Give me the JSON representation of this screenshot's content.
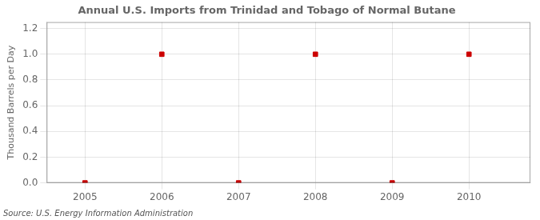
{
  "chart_data": {
    "type": "scatter",
    "title": "Annual U.S. Imports from Trinidad and Tobago of Normal Butane",
    "ylabel": "Thousand Barrels per Day",
    "source": "Source: U.S. Energy Information Administration",
    "x": [
      2005,
      2006,
      2007,
      2008,
      2009,
      2010
    ],
    "values": [
      0.0,
      1.0,
      0.0,
      1.0,
      0.0,
      1.0
    ],
    "color": "#cc0000",
    "marker": "square",
    "xlim": [
      2004.5,
      2010.8
    ],
    "xticks": [
      2005,
      2006,
      2007,
      2008,
      2009,
      2010
    ],
    "ylim": [
      0.0,
      1.25
    ],
    "yticks": [
      {
        "value": 0.0,
        "label": "0.0"
      },
      0.2,
      0.4,
      0.6,
      0.8,
      {
        "value": 1.0,
        "label": "1.0"
      },
      1.2
    ],
    "grid": true
  }
}
